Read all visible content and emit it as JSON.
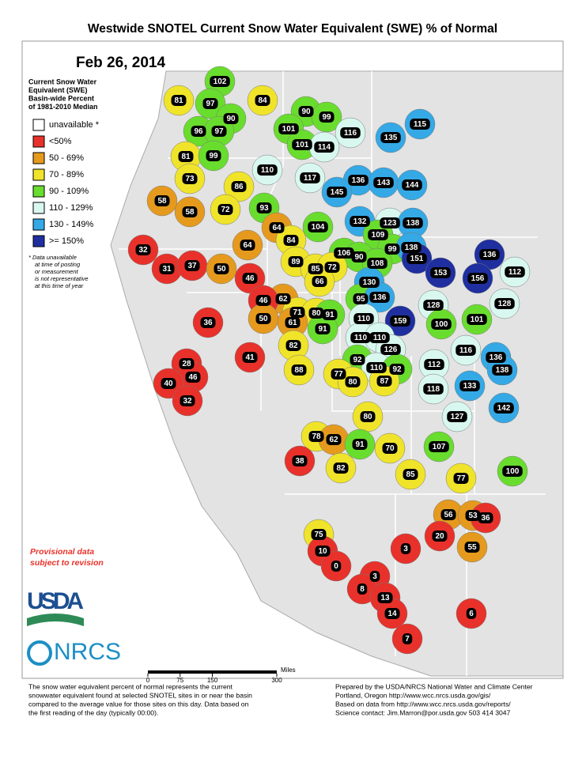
{
  "header": {
    "title": "Westwide SNOTEL Current Snow Water Equivalent (SWE) % of Normal",
    "date": "Feb 26, 2014"
  },
  "legend": {
    "heading": [
      "Current Snow Water",
      "Equivalent (SWE)",
      "Basin-wide Percent",
      "of 1981-2010 Median"
    ],
    "items": [
      {
        "label": "unavailable *",
        "color": "#ffffff"
      },
      {
        "label": "<50%",
        "color": "#e8312a"
      },
      {
        "label": "50 - 69%",
        "color": "#e59a1e"
      },
      {
        "label": "70 - 89%",
        "color": "#f0e42a"
      },
      {
        "label": "90 - 109%",
        "color": "#69dd2d"
      },
      {
        "label": "110 - 129%",
        "color": "#d8f8ef"
      },
      {
        "label": "130 - 149%",
        "color": "#34a9e6"
      },
      {
        "label": ">= 150%",
        "color": "#1f2fa0"
      }
    ],
    "note": [
      "*  Data unavailable",
      "at time of posting",
      "or measurement",
      "is not representative",
      "at this time of year"
    ]
  },
  "provisional": [
    "Provisional data",
    "subject to revision"
  ],
  "logos": {
    "usda": "USDA",
    "nrcs": "NRCS"
  },
  "scale": {
    "ticks": [
      0,
      75,
      150,
      300
    ],
    "unit": "Miles"
  },
  "basins": [
    102,
    81,
    84,
    97,
    90,
    90,
    99,
    101,
    96,
    97,
    116,
    115,
    101,
    114,
    135,
    81,
    99,
    110,
    73,
    117,
    136,
    143,
    144,
    145,
    86,
    58,
    58,
    72,
    93,
    132,
    123,
    138,
    104,
    64,
    84,
    109,
    99,
    138,
    136,
    151,
    106,
    90,
    108,
    32,
    89,
    64,
    85,
    72,
    31,
    37,
    50,
    153,
    156,
    112,
    46,
    66,
    130,
    62,
    46,
    71,
    95,
    136,
    128,
    128,
    80,
    91,
    50,
    61,
    91,
    110,
    159,
    100,
    101,
    36,
    82,
    110,
    110,
    126,
    116,
    136,
    92,
    110,
    92,
    112,
    138,
    41,
    28,
    88,
    77,
    80,
    87,
    46,
    40,
    118,
    133,
    32,
    142,
    127,
    80,
    78,
    62,
    91,
    70,
    107,
    38,
    82,
    100,
    85,
    77,
    56,
    53,
    36,
    20,
    75,
    3,
    55,
    10,
    0,
    3,
    8,
    13,
    6,
    14,
    7
  ],
  "footer": {
    "left": [
      "The snow water equivalent percent of normal represents the current",
      "snowwater equivalent found at selected SNOTEL sites in or near the basin",
      "compared to the average value for those sites on this day. Data based on",
      "the first reading of the day (typically 00:00)."
    ],
    "right": [
      "Prepared by the USDA/NRCS National Water and Climate Center",
      "Portland, Oregon http://www.wcc.nrcs.usda.gov/gis/",
      "Based on data from http://www.wcc.nrcs.usda.gov/reports/",
      "Science contact: Jim.Marron@por.usda.gov 503 414 3047"
    ]
  }
}
